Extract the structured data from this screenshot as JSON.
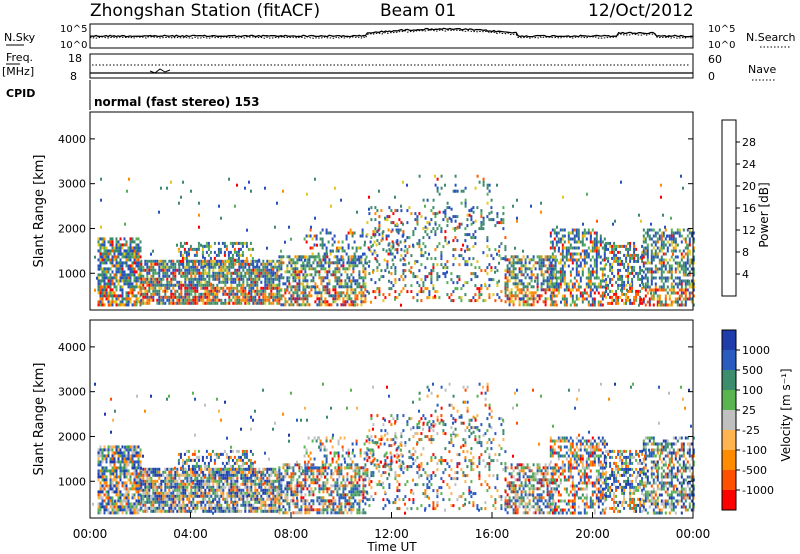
{
  "header": {
    "station": "Zhongshan Station (fitACF)",
    "beam": "Beam 01",
    "date": "12/Oct/2012"
  },
  "top_panels": {
    "nsky_label": "N.Sky",
    "nsearch_label": "N.Search",
    "noise_tick_high": "10^5",
    "noise_tick_low": "10^0",
    "freq_label_1": "Freq.",
    "freq_label_2": "[MHz]",
    "freq_tick_high": "18",
    "freq_tick_low": "8",
    "nave_label": "Nave",
    "nave_tick_high": "60",
    "nave_tick_low": "0",
    "cpid_label": "CPID",
    "cpid_text": "normal (fast stereo) 153"
  },
  "chart_data": [
    {
      "type": "heatmap",
      "name": "power",
      "ylabel": "Slant Range [km]",
      "xlabel": "",
      "yticks": [
        1000,
        2000,
        3000,
        4000
      ],
      "ylim": [
        180,
        4600
      ],
      "xlim": [
        0,
        24
      ],
      "colorbar": {
        "label": "Power [dB]",
        "ticks": [
          "4",
          "8",
          "12",
          "16",
          "20",
          "24",
          "28"
        ],
        "colors": [
          "#0000ff",
          "#2a52be",
          "#3d8a6e",
          "#55b05a",
          "#e6c81e",
          "#ff8c00",
          "#ff5a00",
          "#ff0000"
        ]
      }
    },
    {
      "type": "heatmap",
      "name": "velocity",
      "ylabel": "Slant Range [km]",
      "xlabel": "Time UT",
      "yticks": [
        1000,
        2000,
        3000,
        4000
      ],
      "xticks": [
        "00:00",
        "04:00",
        "08:00",
        "12:00",
        "16:00",
        "20:00",
        "00:00"
      ],
      "ylim": [
        180,
        4600
      ],
      "xlim": [
        0,
        24
      ],
      "colorbar": {
        "label": "Velocity [m s⁻¹]",
        "ticks": [
          "1000",
          "500",
          "100",
          "25",
          "-25",
          "-100",
          "-500",
          "-1000"
        ],
        "colors": [
          "#1e3caa",
          "#2a5cc0",
          "#3c8c6e",
          "#5ab450",
          "#c0c0c0",
          "#ffb450",
          "#ff8c00",
          "#ff5000",
          "#ff0000"
        ]
      }
    }
  ]
}
